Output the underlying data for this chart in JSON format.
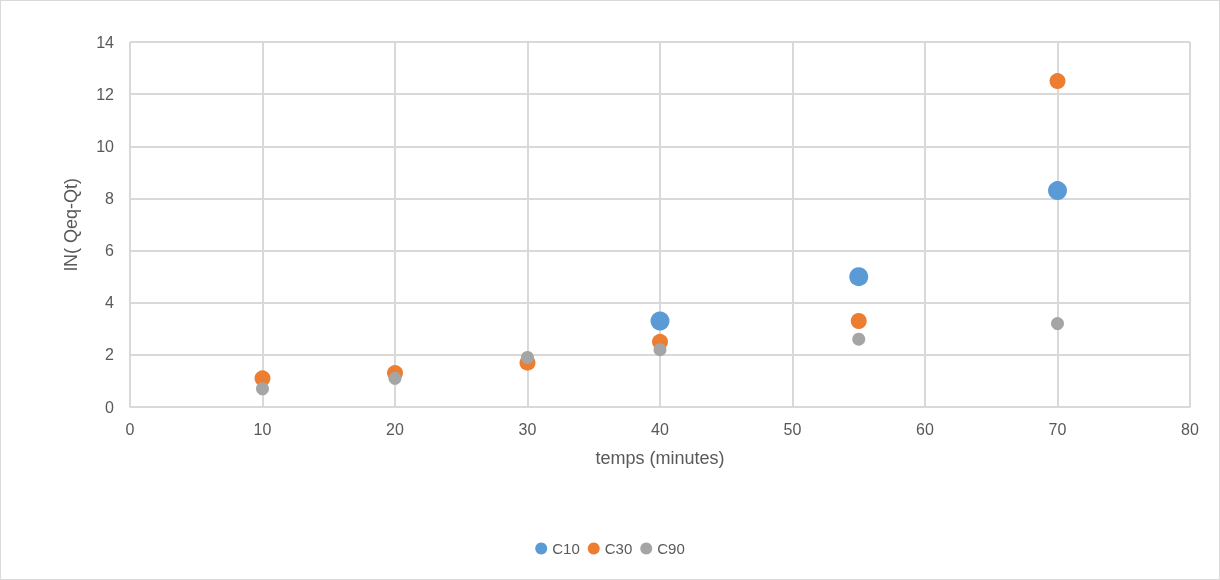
{
  "chart_data": {
    "type": "scatter",
    "xlabel": "temps (minutes)",
    "ylabel": "lN( Qeq-Qt)",
    "x": [
      10,
      20,
      30,
      40,
      55,
      70
    ],
    "series": [
      {
        "name": "C10",
        "color": "#5b9bd5",
        "values": [
          null,
          null,
          null,
          3.3,
          5.0,
          8.3
        ]
      },
      {
        "name": "C30",
        "color": "#ed7d31",
        "values": [
          1.1,
          1.3,
          1.7,
          2.5,
          3.3,
          12.5
        ]
      },
      {
        "name": "C90",
        "color": "#a5a5a5",
        "values": [
          0.7,
          1.1,
          1.9,
          2.2,
          2.6,
          3.2
        ]
      }
    ],
    "xlim": [
      0,
      80
    ],
    "xticks": [
      0,
      10,
      20,
      30,
      40,
      50,
      60,
      70,
      80
    ],
    "ylim": [
      0,
      14
    ],
    "yticks": [
      0,
      2,
      4,
      6,
      8,
      10,
      12,
      14
    ],
    "grid": true,
    "legend": "bottom",
    "marker": "circle"
  }
}
